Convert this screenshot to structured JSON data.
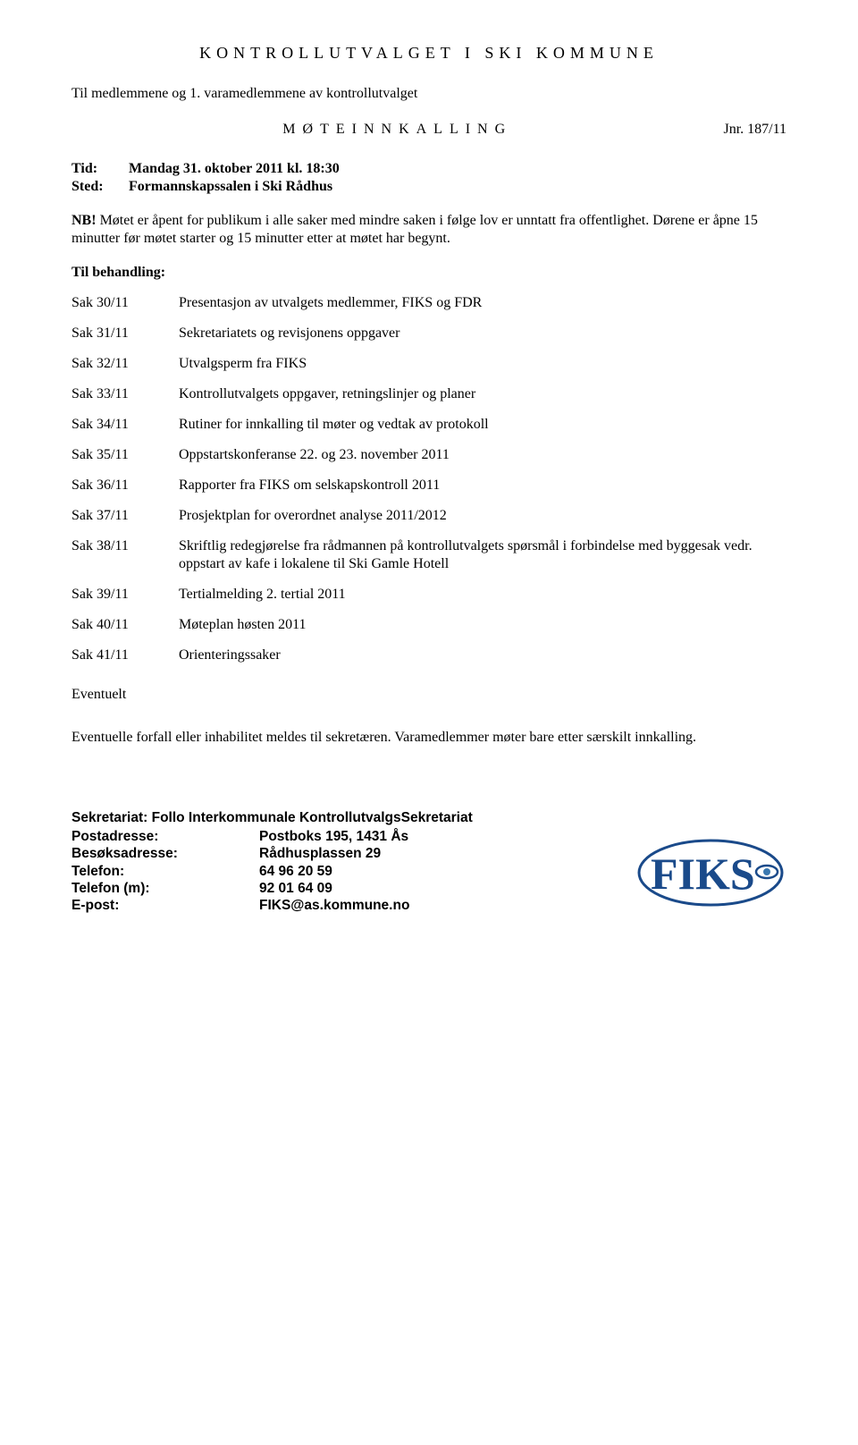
{
  "header": {
    "title": "KONTROLLUTVALGET I SKI KOMMUNE",
    "intro": "Til medlemmene og 1. varamedlemmene av kontrollutvalget",
    "innkalling": "MØTEINNKALLING",
    "jnr": "Jnr. 187/11"
  },
  "tidsted": {
    "tid_label": "Tid:",
    "tid_value": "Mandag 31. oktober 2011 kl. 18:30",
    "sted_label": "Sted:",
    "sted_value": "Formannskapssalen i Ski Rådhus"
  },
  "nb": {
    "label": "NB!",
    "text": " Møtet er åpent for publikum i alle saker med mindre saken i følge lov er unntatt fra offentlighet. Dørene er åpne 15 minutter før møtet starter og 15 minutter etter at møtet har begynt."
  },
  "behandling_label": "Til behandling:",
  "saker": [
    {
      "id": "Sak 30/11",
      "desc": "Presentasjon av utvalgets medlemmer, FIKS og FDR"
    },
    {
      "id": "Sak 31/11",
      "desc": "Sekretariatets og revisjonens oppgaver"
    },
    {
      "id": "Sak 32/11",
      "desc": "Utvalgsperm fra FIKS"
    },
    {
      "id": "Sak 33/11",
      "desc": "Kontrollutvalgets oppgaver, retningslinjer og planer"
    },
    {
      "id": "Sak 34/11",
      "desc": "Rutiner for innkalling til møter og vedtak av protokoll"
    },
    {
      "id": "Sak 35/11",
      "desc": "Oppstartskonferanse 22. og 23. november 2011"
    },
    {
      "id": "Sak 36/11",
      "desc": "Rapporter fra FIKS om selskapskontroll 2011"
    },
    {
      "id": "Sak 37/11",
      "desc": "Prosjektplan for overordnet analyse 2011/2012"
    },
    {
      "id": "Sak 38/11",
      "desc": "Skriftlig redegjørelse fra rådmannen på kontrollutvalgets spørsmål i forbindelse med byggesak vedr. oppstart av kafe i lokalene til Ski Gamle Hotell"
    },
    {
      "id": "Sak 39/11",
      "desc": "Tertialmelding 2. tertial 2011"
    },
    {
      "id": "Sak 40/11",
      "desc": "Møteplan høsten 2011"
    },
    {
      "id": "Sak 41/11",
      "desc": "Orienteringssaker"
    }
  ],
  "eventuelt": "Eventuelt",
  "footnote": "Eventuelle forfall eller inhabilitet meldes til sekretæren. Varamedlemmer møter bare etter særskilt innkalling.",
  "sekretariat": {
    "title": "Sekretariat: Follo Interkommunale KontrollutvalgsSekretariat",
    "rows": [
      {
        "label": "Postadresse:",
        "value": "Postboks 195, 1431 Ås"
      },
      {
        "label": "Besøksadresse:",
        "value": "Rådhusplassen 29"
      },
      {
        "label": "Telefon:",
        "value": "64 96 20 59"
      },
      {
        "label": "Telefon (m):",
        "value": "92 01 64 09"
      },
      {
        "label": "E-post:",
        "value": "FIKS@as.kommune.no"
      }
    ]
  },
  "logo": {
    "text": "FIKS",
    "text_color": "#1a4a8a",
    "ellipse_color": "#1a4a8a",
    "eye_fill": "#3a78b0"
  }
}
